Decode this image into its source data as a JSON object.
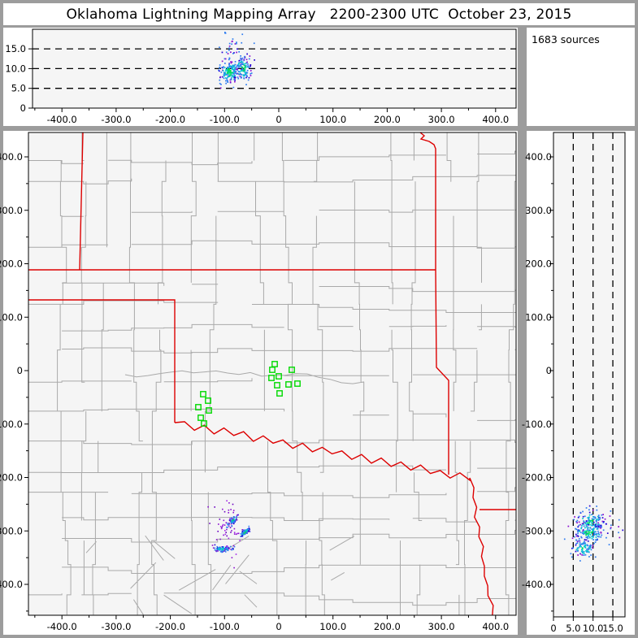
{
  "window": {
    "title": "Oklahoma Lightning Mapping Array   2200-2300 UTC  October 23, 2015"
  },
  "sources_panel": {
    "label": "1683 sources"
  },
  "colors": {
    "background": "#9c9c9c",
    "panel": "#ffffff",
    "plot_bg": "#f5f5f5",
    "county_line": "#a9a9a9",
    "state_line": "#dd0000",
    "station": "#00d900",
    "dash_line": "#000000",
    "palette": [
      "#8a10d0",
      "#2400d8",
      "#2e7cf0",
      "#00c8d0",
      "#00e050"
    ],
    "purple_shades": [
      "#8a10d0",
      "#a428e8",
      "#6a00c0"
    ]
  },
  "chart_data": [
    {
      "type": "scatter",
      "id": "altitude-vs-east-west",
      "xlim": [
        -455,
        437
      ],
      "ylim": [
        0,
        20
      ],
      "x_ticks": [
        {
          "v": -400,
          "label": "-400.0"
        },
        {
          "v": -300,
          "label": "-300.0"
        },
        {
          "v": -200,
          "label": "-200.0"
        },
        {
          "v": -100,
          "label": "-100.0"
        },
        {
          "v": 0,
          "label": "0"
        },
        {
          "v": 100,
          "label": "100.0"
        },
        {
          "v": 200,
          "label": "200.0"
        },
        {
          "v": 300,
          "label": "300.0"
        },
        {
          "v": 400,
          "label": "400.0"
        }
      ],
      "y_ticks": [
        {
          "v": 15,
          "label": "15.0"
        },
        {
          "v": 10,
          "label": "10.0"
        },
        {
          "v": 5,
          "label": "5.0"
        },
        {
          "v": 0,
          "label": "0"
        }
      ],
      "gridlines_alt": [
        5,
        10,
        15
      ],
      "clusters": [
        {
          "x_mean": -90,
          "x_sd": 10,
          "alt_mean": 9.2,
          "alt_sd": 1.5,
          "n": 170
        },
        {
          "x_mean": -65,
          "x_sd": 8,
          "alt_mean": 9.9,
          "alt_sd": 1.6,
          "n": 110
        },
        {
          "x_mean": -82,
          "x_sd": 12,
          "alt_min": 12.5,
          "alt_max": 19.5,
          "n": 26,
          "sparse": true
        }
      ]
    },
    {
      "type": "scatter",
      "id": "plan-view-map",
      "xlim": [
        -461,
        437
      ],
      "ylim": [
        -459,
        446
      ],
      "x_ticks": [
        {
          "v": -400,
          "label": "-400.0"
        },
        {
          "v": -300,
          "label": "-300.0"
        },
        {
          "v": -200,
          "label": "-200.0"
        },
        {
          "v": -100,
          "label": "-100.0"
        },
        {
          "v": 0,
          "label": "0"
        },
        {
          "v": 100,
          "label": "100.0"
        },
        {
          "v": 200,
          "label": "200.0"
        },
        {
          "v": 300,
          "label": "300.0"
        },
        {
          "v": 400,
          "label": "400.0"
        }
      ],
      "y_ticks": [
        {
          "v": 400,
          "label": "400.0"
        },
        {
          "v": 300,
          "label": "300.0"
        },
        {
          "v": 200,
          "label": "200.0"
        },
        {
          "v": 100,
          "label": "100.0"
        },
        {
          "v": 0,
          "label": "0"
        },
        {
          "v": -100,
          "label": "-100.0"
        },
        {
          "v": -200,
          "label": "-200.0"
        },
        {
          "v": -300,
          "label": "-300.0"
        },
        {
          "v": -400,
          "label": "-400.0"
        }
      ],
      "stations_km": [
        [
          -7.5,
          12.2
        ],
        [
          -12,
          1.5
        ],
        [
          24,
          1.5
        ],
        [
          -13.5,
          -13.7
        ],
        [
          0,
          -10.6
        ],
        [
          -3,
          -27.4
        ],
        [
          18,
          -25.9
        ],
        [
          34.5,
          -24.3
        ],
        [
          1.5,
          -42.6
        ],
        [
          -139.4,
          -44.1
        ],
        [
          -130.4,
          -56.3
        ],
        [
          -148.4,
          -68.4
        ],
        [
          -128.9,
          -74.5
        ],
        [
          -143.9,
          -88.2
        ],
        [
          -137.9,
          -98.9
        ]
      ],
      "clusters": [
        {
          "x": -85,
          "y": -281,
          "maj": 7,
          "min": 2.5,
          "angle": 45,
          "n": 70
        },
        {
          "x": -63,
          "y": -303,
          "maj": 6,
          "min": 2.5,
          "angle": 40,
          "n": 70
        },
        {
          "x": -103,
          "y": -334,
          "maj": 9,
          "min": 3,
          "angle": 0,
          "n": 85
        },
        {
          "x": -95,
          "y": -295,
          "maj": 15,
          "min": 26,
          "angle": 0,
          "n": 55,
          "purple": true
        }
      ]
    },
    {
      "type": "scatter",
      "id": "altitude-vs-north-south",
      "xlim": [
        0,
        18
      ],
      "ylim": [
        -459,
        446
      ],
      "x_ticks": [
        {
          "v": 0,
          "label": "0"
        },
        {
          "v": 5,
          "label": "5.0"
        },
        {
          "v": 10,
          "label": "10.0"
        },
        {
          "v": 15,
          "label": "15.0"
        }
      ],
      "y_ticks": [
        {
          "v": 400,
          "label": "400.0"
        },
        {
          "v": 300,
          "label": "300.0"
        },
        {
          "v": 200,
          "label": "200.0"
        },
        {
          "v": 100,
          "label": "100.0"
        },
        {
          "v": 0,
          "label": "0"
        },
        {
          "v": -100,
          "label": "-100.0"
        },
        {
          "v": -200,
          "label": "-200.0"
        },
        {
          "v": -300,
          "label": "-300.0"
        },
        {
          "v": -400,
          "label": "-400.0"
        }
      ],
      "gridlines_alt": [
        5,
        10,
        15
      ],
      "clusters": [
        {
          "y_mean": -285,
          "y_sd": 12,
          "alt_mean": 9.5,
          "alt_sd": 1.8,
          "n": 140
        },
        {
          "y_mean": -305,
          "y_sd": 10,
          "alt_mean": 9.0,
          "alt_sd": 2.0,
          "n": 120
        },
        {
          "y_mean": -332,
          "y_sd": 8,
          "alt_mean": 7.5,
          "alt_sd": 1.5,
          "n": 80
        },
        {
          "y_mean": -300,
          "y_sd": 22,
          "alt_min": 14,
          "alt_max": 18,
          "n": 9,
          "sparse": true
        }
      ]
    }
  ]
}
